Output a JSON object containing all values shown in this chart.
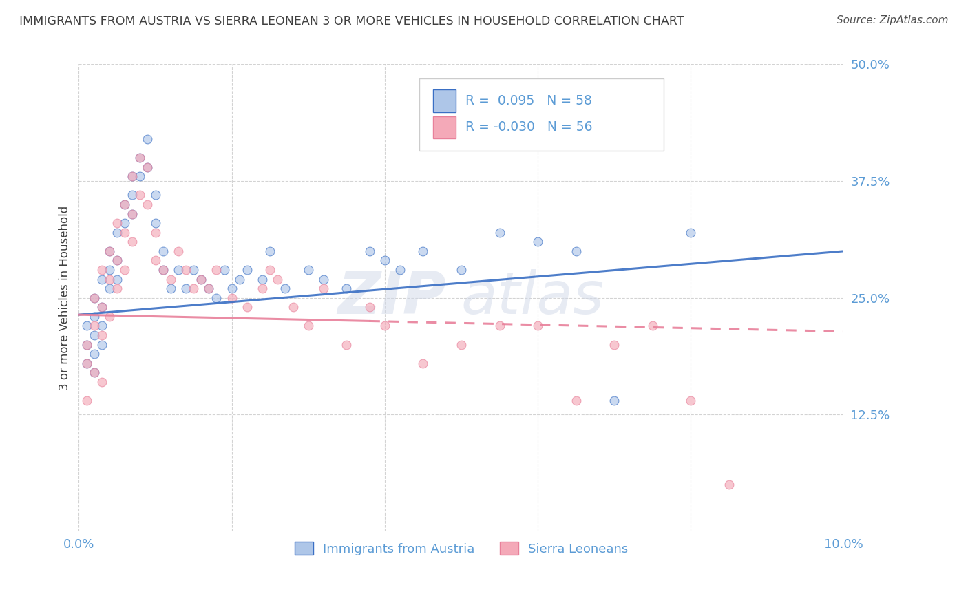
{
  "title": "IMMIGRANTS FROM AUSTRIA VS SIERRA LEONEAN 3 OR MORE VEHICLES IN HOUSEHOLD CORRELATION CHART",
  "source": "Source: ZipAtlas.com",
  "ylabel": "3 or more Vehicles in Household",
  "xmin": 0.0,
  "xmax": 0.1,
  "ymin": 0.0,
  "ymax": 0.5,
  "xticks": [
    0.0,
    0.02,
    0.04,
    0.06,
    0.08,
    0.1
  ],
  "xtick_labels": [
    "0.0%",
    "",
    "",
    "",
    "",
    "10.0%"
  ],
  "yticks": [
    0.0,
    0.125,
    0.25,
    0.375,
    0.5
  ],
  "ytick_labels": [
    "",
    "12.5%",
    "25.0%",
    "37.5%",
    "50.0%"
  ],
  "legend_r1": "R =  0.095",
  "legend_n1": "N = 58",
  "legend_r2": "R = -0.030",
  "legend_n2": "N = 56",
  "color_austria": "#aec6e8",
  "color_sierra": "#f4a9b8",
  "color_line_austria": "#3a6fc4",
  "color_line_sierra": "#e8809a",
  "color_text": "#5b9bd5",
  "color_title": "#404040",
  "color_grid": "#c8c8c8",
  "label_austria": "Immigrants from Austria",
  "label_sierra": "Sierra Leoneans",
  "austria_x": [
    0.001,
    0.001,
    0.001,
    0.002,
    0.002,
    0.002,
    0.002,
    0.002,
    0.003,
    0.003,
    0.003,
    0.003,
    0.004,
    0.004,
    0.004,
    0.005,
    0.005,
    0.005,
    0.006,
    0.006,
    0.007,
    0.007,
    0.007,
    0.008,
    0.008,
    0.009,
    0.009,
    0.01,
    0.01,
    0.011,
    0.011,
    0.012,
    0.013,
    0.014,
    0.015,
    0.016,
    0.017,
    0.018,
    0.019,
    0.02,
    0.021,
    0.022,
    0.024,
    0.025,
    0.027,
    0.03,
    0.032,
    0.035,
    0.038,
    0.04,
    0.042,
    0.045,
    0.05,
    0.055,
    0.06,
    0.065,
    0.07,
    0.08
  ],
  "austria_y": [
    0.22,
    0.2,
    0.18,
    0.25,
    0.23,
    0.21,
    0.19,
    0.17,
    0.27,
    0.24,
    0.22,
    0.2,
    0.3,
    0.28,
    0.26,
    0.32,
    0.29,
    0.27,
    0.35,
    0.33,
    0.38,
    0.36,
    0.34,
    0.4,
    0.38,
    0.42,
    0.39,
    0.36,
    0.33,
    0.3,
    0.28,
    0.26,
    0.28,
    0.26,
    0.28,
    0.27,
    0.26,
    0.25,
    0.28,
    0.26,
    0.27,
    0.28,
    0.27,
    0.3,
    0.26,
    0.28,
    0.27,
    0.26,
    0.3,
    0.29,
    0.28,
    0.3,
    0.28,
    0.32,
    0.31,
    0.3,
    0.14,
    0.32
  ],
  "sierra_x": [
    0.001,
    0.001,
    0.001,
    0.002,
    0.002,
    0.002,
    0.003,
    0.003,
    0.003,
    0.003,
    0.004,
    0.004,
    0.004,
    0.005,
    0.005,
    0.005,
    0.006,
    0.006,
    0.006,
    0.007,
    0.007,
    0.007,
    0.008,
    0.008,
    0.009,
    0.009,
    0.01,
    0.01,
    0.011,
    0.012,
    0.013,
    0.014,
    0.015,
    0.016,
    0.017,
    0.018,
    0.02,
    0.022,
    0.024,
    0.025,
    0.026,
    0.028,
    0.03,
    0.032,
    0.035,
    0.038,
    0.04,
    0.045,
    0.05,
    0.055,
    0.06,
    0.065,
    0.07,
    0.075,
    0.08,
    0.085
  ],
  "sierra_y": [
    0.2,
    0.18,
    0.14,
    0.25,
    0.22,
    0.17,
    0.28,
    0.24,
    0.21,
    0.16,
    0.3,
    0.27,
    0.23,
    0.33,
    0.29,
    0.26,
    0.35,
    0.32,
    0.28,
    0.38,
    0.34,
    0.31,
    0.4,
    0.36,
    0.39,
    0.35,
    0.32,
    0.29,
    0.28,
    0.27,
    0.3,
    0.28,
    0.26,
    0.27,
    0.26,
    0.28,
    0.25,
    0.24,
    0.26,
    0.28,
    0.27,
    0.24,
    0.22,
    0.26,
    0.2,
    0.24,
    0.22,
    0.18,
    0.2,
    0.22,
    0.22,
    0.14,
    0.2,
    0.22,
    0.14,
    0.05
  ],
  "watermark_zip": "ZIP",
  "watermark_atlas": "atlas",
  "marker_size": 85,
  "marker_alpha": 0.65,
  "line_alpha": 0.9,
  "austria_trend_y0": 0.232,
  "austria_trend_y1": 0.3,
  "sierra_trend_y0": 0.232,
  "sierra_trend_y1": 0.214
}
